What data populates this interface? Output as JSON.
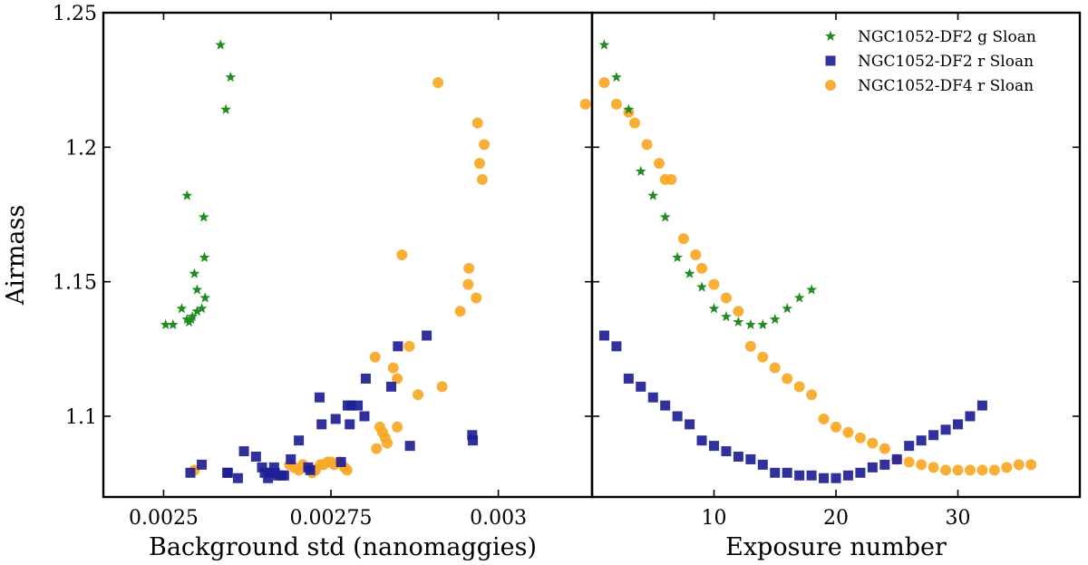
{
  "colors": {
    "green": "#228b22",
    "blue": "#1f1f96",
    "orange": "#f9a825",
    "axes": "#000000"
  },
  "legend": [
    {
      "label": "NGC1052-DF2 g Sloan",
      "marker": "star",
      "color": "#228b22"
    },
    {
      "label": "NGC1052-DF2 r Sloan",
      "marker": "square",
      "color": "#1f1f96"
    },
    {
      "label": "NGC1052-DF4 r Sloan",
      "marker": "circle",
      "color": "#f9a825"
    }
  ],
  "chart_data": [
    {
      "type": "scatter",
      "title": "",
      "xlabel": "Background std (nanomaggies)",
      "ylabel": "Airmass",
      "xlim": [
        0.00241,
        0.00314
      ],
      "ylim": [
        1.07,
        1.25
      ],
      "xticks": [
        0.0025,
        0.00275,
        0.003
      ],
      "xtick_labels": [
        "0.0025",
        "0.00275",
        "0.003"
      ],
      "yticks": [
        1.1,
        1.15,
        1.2,
        1.25
      ],
      "ytick_labels": [
        "1.1",
        "1.15",
        "1.2",
        "1.25"
      ],
      "series": [
        {
          "name": "NGC1052-DF2 g Sloan",
          "marker": "star",
          "color": "#228b22",
          "x": [
            0.002503,
            0.002514,
            0.002527,
            0.002535,
            0.002538,
            0.002541,
            0.002543,
            0.002546,
            0.00255,
            0.002557,
            0.002561,
            0.002562,
            0.002593,
            0.002535,
            0.00255,
            0.00256,
            0.002585,
            0.0026
          ],
          "y": [
            1.134,
            1.134,
            1.14,
            1.136,
            1.135,
            1.136,
            1.137,
            1.153,
            1.147,
            1.14,
            1.159,
            1.144,
            1.214,
            1.182,
            1.139,
            1.174,
            1.238,
            1.226
          ]
        },
        {
          "name": "NGC1052-DF2 r Sloan",
          "marker": "square",
          "color": "#1f1f96",
          "x": [
            0.00254,
            0.002557,
            0.002596,
            0.002611,
            0.00262,
            0.002638,
            0.002647,
            0.002651,
            0.002656,
            0.00266,
            0.002665,
            0.002666,
            0.002671,
            0.002676,
            0.00268,
            0.00269,
            0.002702,
            0.002716,
            0.002719,
            0.002733,
            0.002736,
            0.002757,
            0.002765,
            0.002775,
            0.002778,
            0.00278,
            0.00279,
            0.0028,
            0.002802,
            0.00284,
            0.00285,
            0.002868,
            0.002893,
            0.002961,
            0.002962,
            0.002595
          ],
          "y": [
            1.079,
            1.082,
            1.079,
            1.077,
            1.087,
            1.085,
            1.081,
            1.079,
            1.077,
            1.079,
            1.081,
            1.079,
            1.078,
            1.078,
            1.078,
            1.084,
            1.091,
            1.081,
            1.08,
            1.107,
            1.097,
            1.099,
            1.083,
            1.104,
            1.097,
            1.104,
            1.104,
            1.1,
            1.114,
            1.111,
            1.126,
            1.089,
            1.13,
            1.093,
            1.091,
            1.079
          ]
        },
        {
          "name": "NGC1052-DF4 r Sloan",
          "marker": "circle",
          "color": "#f9a825",
          "x": [
            0.002546,
            0.002688,
            0.002695,
            0.002702,
            0.002708,
            0.002722,
            0.002727,
            0.002734,
            0.002739,
            0.002745,
            0.00275,
            0.002755,
            0.002763,
            0.00277,
            0.002774,
            0.002816,
            0.002818,
            0.002823,
            0.002827,
            0.002831,
            0.002834,
            0.002843,
            0.002849,
            0.002849,
            0.002856,
            0.002867,
            0.00288,
            0.00291,
            0.002916,
            0.002943,
            0.002955,
            0.002956,
            0.002967,
            0.002969,
            0.002972,
            0.002976,
            0.002979,
            0.00313
          ],
          "y": [
            1.08,
            1.082,
            1.081,
            1.08,
            1.082,
            1.079,
            1.08,
            1.082,
            1.082,
            1.083,
            1.083,
            1.082,
            1.083,
            1.081,
            1.08,
            1.122,
            1.088,
            1.096,
            1.094,
            1.092,
            1.09,
            1.118,
            1.114,
            1.096,
            1.16,
            1.126,
            1.108,
            1.224,
            1.111,
            1.139,
            1.149,
            1.155,
            1.144,
            1.209,
            1.194,
            1.188,
            1.201,
            1.216
          ]
        }
      ]
    },
    {
      "type": "scatter",
      "title": "",
      "xlabel": "Exposure number",
      "ylabel": "",
      "xlim": [
        0,
        40
      ],
      "ylim": [
        1.07,
        1.25
      ],
      "xticks": [
        10,
        20,
        30
      ],
      "xtick_labels": [
        "10",
        "20",
        "30"
      ],
      "yticks": [
        1.1,
        1.15,
        1.2,
        1.25
      ],
      "ytick_labels": [
        "",
        "",
        "",
        ""
      ],
      "series": [
        {
          "name": "NGC1052-DF2 g Sloan",
          "marker": "star",
          "color": "#228b22",
          "x": [
            1,
            2,
            3,
            4,
            5,
            6,
            7,
            8,
            9,
            10,
            11,
            12,
            13,
            14,
            15,
            16,
            17,
            18
          ],
          "y": [
            1.238,
            1.226,
            1.214,
            1.191,
            1.182,
            1.174,
            1.159,
            1.153,
            1.148,
            1.14,
            1.137,
            1.135,
            1.134,
            1.134,
            1.136,
            1.14,
            1.144,
            1.147
          ]
        },
        {
          "name": "NGC1052-DF2 r Sloan",
          "marker": "square",
          "color": "#1f1f96",
          "x": [
            1,
            2,
            3,
            4,
            5,
            6,
            7,
            8,
            9,
            10,
            11,
            12,
            13,
            14,
            15,
            16,
            17,
            18,
            19,
            20,
            21,
            22,
            23,
            24,
            25,
            26,
            27,
            28,
            29,
            30,
            31,
            32
          ],
          "y": [
            1.13,
            1.126,
            1.114,
            1.111,
            1.107,
            1.104,
            1.1,
            1.097,
            1.091,
            1.089,
            1.087,
            1.085,
            1.084,
            1.082,
            1.079,
            1.079,
            1.078,
            1.078,
            1.077,
            1.077,
            1.078,
            1.079,
            1.081,
            1.082,
            1.084,
            1.089,
            1.091,
            1.093,
            1.095,
            1.097,
            1.1,
            1.104
          ]
        },
        {
          "name": "NGC1052-DF4 r Sloan",
          "marker": "circle",
          "color": "#f9a825",
          "x": [
            1,
            2,
            3,
            3.5,
            4.5,
            5.5,
            6,
            6.5,
            7.5,
            8.5,
            9,
            10,
            11,
            12,
            13,
            14,
            15,
            16,
            17,
            18,
            19,
            20,
            21,
            22,
            23,
            24,
            25,
            26,
            27,
            28,
            29,
            30,
            31,
            32,
            33,
            34,
            35,
            36
          ],
          "y": [
            1.224,
            1.216,
            1.213,
            1.209,
            1.201,
            1.194,
            1.188,
            1.188,
            1.166,
            1.16,
            1.155,
            1.149,
            1.144,
            1.139,
            1.126,
            1.122,
            1.118,
            1.114,
            1.111,
            1.108,
            1.099,
            1.096,
            1.094,
            1.092,
            1.09,
            1.088,
            1.084,
            1.083,
            1.082,
            1.081,
            1.08,
            1.08,
            1.08,
            1.08,
            1.08,
            1.081,
            1.082,
            1.082
          ]
        }
      ]
    }
  ]
}
